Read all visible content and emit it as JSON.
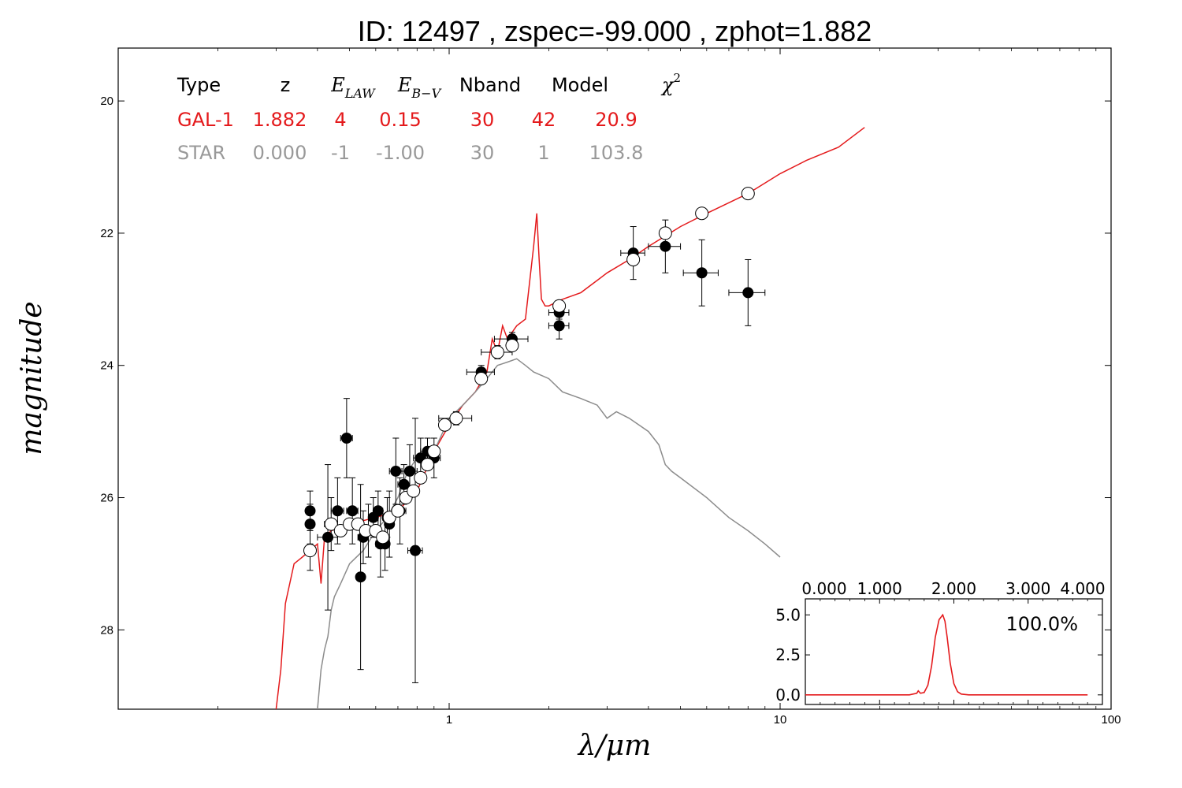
{
  "chart_data": [
    {
      "type": "scatter",
      "title": "ID:  12497 , zspec=-99.000 , zphot=1.882",
      "xlabel": "λ/μm",
      "ylabel": "magnitude",
      "xscale": "log",
      "xlim": [
        0.1,
        100
      ],
      "ylim": [
        29.2,
        19.2
      ],
      "y_inverted": true,
      "grid": false,
      "x_ticks": [
        {
          "value": 1,
          "label": "1"
        },
        {
          "value": 10,
          "label": "10"
        },
        {
          "value": 100,
          "label": "100"
        }
      ],
      "y_ticks": [
        {
          "value": 20,
          "label": "20"
        },
        {
          "value": 22,
          "label": "22"
        },
        {
          "value": 24,
          "label": "24"
        },
        {
          "value": 26,
          "label": "26"
        },
        {
          "value": 28,
          "label": "28"
        }
      ],
      "colors": {
        "galaxy": "#e41a1c",
        "star": "#8c8c8c"
      },
      "fit_table": {
        "headers": [
          {
            "text": "Type",
            "math": false
          },
          {
            "text": "z",
            "math": false
          },
          {
            "text": "E",
            "sub": "LAW",
            "math": true
          },
          {
            "text": "E",
            "sub": "B−V",
            "math": true
          },
          {
            "text": "Nband",
            "math": false
          },
          {
            "text": "Model",
            "math": false
          },
          {
            "text": "χ",
            "sup": "2",
            "math": true
          }
        ],
        "rows": [
          {
            "name": "GAL-1",
            "color": "#e41a1c",
            "cells": [
              "GAL-1",
              "1.882",
              "4",
              "0.15",
              "30",
              "42",
              "20.9"
            ]
          },
          {
            "name": "STAR",
            "color": "#999999",
            "cells": [
              "STAR",
              "0.000",
              "-1",
              "-1.00",
              "30",
              "1",
              "103.8"
            ]
          }
        ]
      },
      "series": [
        {
          "role": "galaxy-template",
          "kind": "line",
          "color": "#e41a1c",
          "x": [
            0.3,
            0.31,
            0.32,
            0.34,
            0.36,
            0.38,
            0.4,
            0.41,
            0.42,
            0.44,
            0.5,
            0.6,
            0.7,
            0.8,
            0.9,
            1.0,
            1.1,
            1.2,
            1.3,
            1.35,
            1.4,
            1.45,
            1.5,
            1.6,
            1.7,
            1.8,
            1.84,
            1.87,
            1.9,
            1.95,
            2.0,
            2.2,
            2.5,
            3.0,
            3.5,
            4.0,
            5.0,
            6.0,
            8.0,
            10.0,
            12.0,
            15.0,
            18.0
          ],
          "y": [
            29.2,
            28.6,
            27.6,
            27.0,
            26.9,
            26.8,
            26.7,
            27.3,
            26.6,
            26.5,
            26.4,
            26.3,
            26.2,
            25.9,
            25.3,
            24.9,
            24.6,
            24.4,
            24.1,
            23.6,
            23.8,
            23.4,
            23.6,
            23.4,
            23.3,
            22.2,
            21.7,
            22.4,
            23.0,
            23.1,
            23.1,
            23.0,
            22.9,
            22.6,
            22.4,
            22.2,
            21.9,
            21.7,
            21.4,
            21.1,
            20.9,
            20.7,
            20.4
          ]
        },
        {
          "role": "star-template",
          "kind": "line",
          "color": "#8c8c8c",
          "x": [
            0.4,
            0.41,
            0.42,
            0.43,
            0.44,
            0.45,
            0.47,
            0.5,
            0.55,
            0.6,
            0.65,
            0.7,
            0.75,
            0.8,
            0.85,
            0.9,
            1.0,
            1.1,
            1.2,
            1.3,
            1.4,
            1.5,
            1.6,
            1.7,
            1.8,
            2.0,
            2.2,
            2.5,
            2.8,
            3.0,
            3.2,
            3.5,
            4.0,
            4.3,
            4.5,
            4.7,
            5.0,
            6.0,
            7.0,
            8.0,
            9.0,
            10.0
          ],
          "y": [
            29.2,
            28.6,
            28.3,
            28.1,
            27.7,
            27.5,
            27.3,
            27.0,
            26.8,
            26.5,
            26.3,
            26.0,
            25.6,
            25.4,
            25.5,
            25.3,
            24.8,
            24.6,
            24.4,
            24.2,
            24.0,
            23.95,
            23.9,
            24.0,
            24.1,
            24.2,
            24.4,
            24.5,
            24.6,
            24.8,
            24.7,
            24.8,
            25.0,
            25.2,
            25.5,
            25.6,
            25.7,
            26.0,
            26.3,
            26.5,
            26.7,
            26.9
          ]
        },
        {
          "role": "model-magnitudes",
          "kind": "open-circles",
          "x": [
            0.38,
            0.44,
            0.47,
            0.5,
            0.53,
            0.56,
            0.6,
            0.63,
            0.66,
            0.7,
            0.74,
            0.78,
            0.82,
            0.86,
            0.9,
            0.97,
            1.05,
            1.25,
            1.4,
            1.55,
            2.15,
            3.6,
            4.5,
            5.8,
            8.0
          ],
          "y": [
            26.8,
            26.4,
            26.5,
            26.4,
            26.4,
            26.5,
            26.5,
            26.6,
            26.3,
            26.2,
            26.0,
            25.9,
            25.7,
            25.5,
            25.3,
            24.9,
            24.8,
            24.2,
            23.8,
            23.7,
            23.1,
            22.4,
            22.0,
            21.7,
            21.4
          ]
        },
        {
          "role": "observed-magnitudes",
          "kind": "filled-circles-with-errorbars",
          "x": [
            0.38,
            0.38,
            0.38,
            0.43,
            0.44,
            0.46,
            0.49,
            0.51,
            0.54,
            0.55,
            0.57,
            0.59,
            0.61,
            0.62,
            0.64,
            0.65,
            0.66,
            0.69,
            0.71,
            0.73,
            0.76,
            0.79,
            0.82,
            0.86,
            0.9,
            1.05,
            1.25,
            1.4,
            1.55,
            2.15,
            2.15,
            3.6,
            4.5,
            5.8,
            8.0
          ],
          "y": [
            26.2,
            26.4,
            26.8,
            26.6,
            26.4,
            26.2,
            25.1,
            26.2,
            27.2,
            26.6,
            26.5,
            26.3,
            26.2,
            26.7,
            26.7,
            26.3,
            26.4,
            25.6,
            26.2,
            25.8,
            25.6,
            26.8,
            25.4,
            25.3,
            25.4,
            24.8,
            24.1,
            23.8,
            23.6,
            23.2,
            23.4,
            22.3,
            22.2,
            22.6,
            22.9
          ],
          "yerr": [
            0.3,
            0.3,
            0.3,
            1.1,
            0.4,
            0.5,
            0.6,
            0.5,
            1.4,
            0.4,
            0.4,
            0.3,
            0.3,
            0.5,
            0.4,
            0.3,
            0.5,
            0.5,
            0.5,
            0.3,
            0.4,
            2.0,
            0.3,
            0.2,
            0.3,
            0.1,
            0.1,
            0.1,
            0.1,
            0.1,
            0.2,
            0.4,
            0.4,
            0.5,
            0.5
          ],
          "xerr": [
            0.01,
            0.01,
            0.01,
            0.03,
            0.02,
            0.02,
            0.02,
            0.02,
            0.01,
            0.02,
            0.02,
            0.02,
            0.02,
            0.02,
            0.02,
            0.02,
            0.02,
            0.03,
            0.03,
            0.03,
            0.04,
            0.04,
            0.04,
            0.04,
            0.04,
            0.12,
            0.12,
            0.15,
            0.18,
            0.15,
            0.15,
            0.3,
            0.5,
            0.7,
            1.0
          ]
        }
      ]
    },
    {
      "type": "line",
      "role": "redshift-probability-inset",
      "xlim": [
        0.0,
        4.0
      ],
      "ylim": [
        -0.6,
        6.0
      ],
      "x_ticks": [
        {
          "value": 0,
          "label": "0.000"
        },
        {
          "value": 1,
          "label": "1.000"
        },
        {
          "value": 2,
          "label": "2.000"
        },
        {
          "value": 3,
          "label": "3.000"
        },
        {
          "value": 4,
          "label": "4.000"
        }
      ],
      "y_ticks": [
        {
          "value": 0,
          "label": "0.0"
        },
        {
          "value": 2.5,
          "label": "2.5"
        },
        {
          "value": 5,
          "label": "5.0"
        }
      ],
      "annotation": "100.0%",
      "series": [
        {
          "color": "#e41a1c",
          "x": [
            0.0,
            0.5,
            1.0,
            1.4,
            1.5,
            1.52,
            1.55,
            1.6,
            1.65,
            1.7,
            1.75,
            1.8,
            1.85,
            1.88,
            1.91,
            1.95,
            2.0,
            2.05,
            2.1,
            2.2,
            2.5,
            3.0,
            3.5,
            3.8
          ],
          "y": [
            0.0,
            0.0,
            0.0,
            0.0,
            0.1,
            0.25,
            0.1,
            0.15,
            0.6,
            1.8,
            3.6,
            4.7,
            5.0,
            4.6,
            3.6,
            2.0,
            0.7,
            0.2,
            0.05,
            0.0,
            0.0,
            0.0,
            0.0,
            0.0
          ]
        }
      ]
    }
  ]
}
